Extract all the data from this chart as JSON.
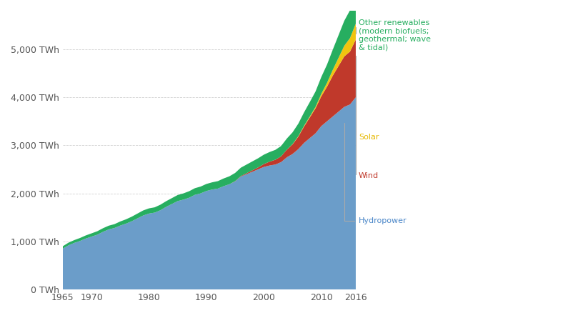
{
  "years": [
    1965,
    1966,
    1967,
    1968,
    1969,
    1970,
    1971,
    1972,
    1973,
    1974,
    1975,
    1976,
    1977,
    1978,
    1979,
    1980,
    1981,
    1982,
    1983,
    1984,
    1985,
    1986,
    1987,
    1988,
    1989,
    1990,
    1991,
    1992,
    1993,
    1994,
    1995,
    1996,
    1997,
    1998,
    1999,
    2000,
    2001,
    2002,
    2003,
    2004,
    2005,
    2006,
    2007,
    2008,
    2009,
    2010,
    2011,
    2012,
    2013,
    2014,
    2015,
    2016
  ],
  "hydropower": [
    850,
    920,
    970,
    1010,
    1060,
    1100,
    1140,
    1200,
    1250,
    1280,
    1330,
    1370,
    1420,
    1480,
    1540,
    1580,
    1600,
    1650,
    1720,
    1780,
    1840,
    1870,
    1910,
    1970,
    2000,
    2050,
    2080,
    2100,
    2150,
    2190,
    2250,
    2350,
    2400,
    2450,
    2500,
    2550,
    2580,
    2600,
    2650,
    2750,
    2820,
    2920,
    3050,
    3150,
    3250,
    3400,
    3500,
    3600,
    3700,
    3800,
    3850,
    4000
  ],
  "wind": [
    0,
    0,
    0,
    0,
    0,
    0,
    0,
    0,
    0,
    0,
    0,
    0,
    0,
    0,
    0,
    0,
    0,
    0,
    0,
    0,
    0,
    0,
    0,
    0,
    0,
    0,
    0,
    0,
    0,
    0,
    5,
    10,
    20,
    30,
    40,
    60,
    80,
    100,
    120,
    160,
    200,
    260,
    340,
    430,
    520,
    620,
    720,
    850,
    950,
    1050,
    1100,
    1200
  ],
  "solar": [
    0,
    0,
    0,
    0,
    0,
    0,
    0,
    0,
    0,
    0,
    0,
    0,
    0,
    0,
    0,
    0,
    0,
    0,
    0,
    0,
    0,
    0,
    0,
    0,
    0,
    0,
    0,
    0,
    0,
    0,
    0,
    0,
    0,
    0,
    0,
    0,
    0,
    0,
    0,
    0,
    5,
    10,
    15,
    20,
    30,
    50,
    80,
    120,
    170,
    220,
    280,
    330
  ],
  "other_renewables": [
    50,
    55,
    58,
    62,
    65,
    68,
    72,
    75,
    78,
    80,
    85,
    90,
    95,
    100,
    105,
    108,
    110,
    115,
    118,
    122,
    126,
    130,
    135,
    138,
    142,
    146,
    150,
    155,
    160,
    165,
    170,
    175,
    180,
    185,
    190,
    195,
    200,
    205,
    215,
    230,
    245,
    260,
    280,
    300,
    320,
    350,
    380,
    420,
    470,
    520,
    580,
    680
  ],
  "colors": {
    "hydropower": "#6b9dc9",
    "wind": "#c0392b",
    "solar": "#f1c40f",
    "other_renewables": "#27ae60"
  },
  "legend_labels": {
    "other_renewables": "Other renewables\n(modern biofuels;\ngeothermal; wave\n& tidal)",
    "solar": "Solar",
    "wind": "Wind",
    "hydropower": "Hydropower"
  },
  "legend_colors": {
    "other_renewables": "#27ae60",
    "solar": "#e6b800",
    "wind": "#c0392b",
    "hydropower": "#4a86c8"
  },
  "ytick_labels": [
    "0 TWh",
    "1,000 TWh",
    "2,000 TWh",
    "3,000 TWh",
    "4,000 TWh",
    "5,000 TWh"
  ],
  "ytick_values": [
    0,
    1000,
    2000,
    3000,
    4000,
    5000
  ],
  "ylim": [
    0,
    5800
  ],
  "background_color": "#ffffff",
  "grid_color": "#cccccc"
}
